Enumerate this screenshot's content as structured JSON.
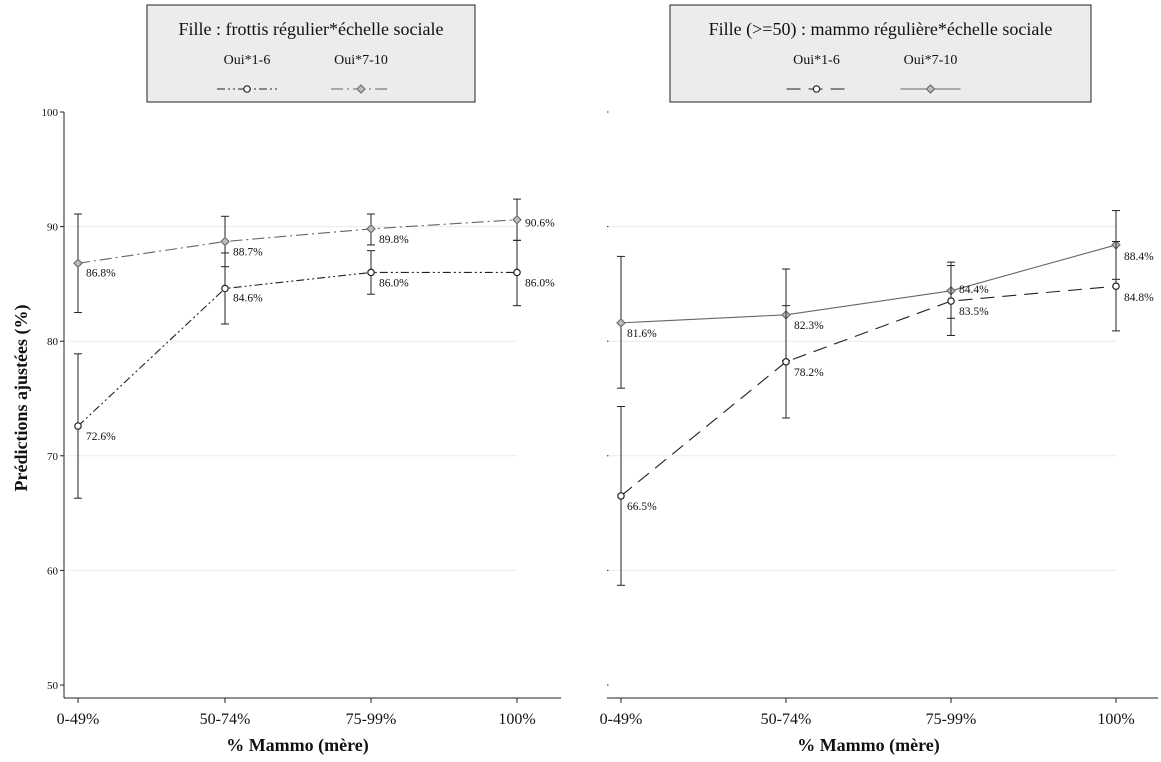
{
  "y_axis_title": "Prédictions ajustées (%)",
  "chart_data": [
    {
      "type": "line",
      "title": "Fille : frottis régulier*échelle sociale",
      "xlabel": "% Mammo (mère)",
      "ylabel": "Prédictions ajustées (%)",
      "categories": [
        "0-49%",
        "50-74%",
        "75-99%",
        "100%"
      ],
      "ylim": [
        50,
        100
      ],
      "yticks": [
        50,
        60,
        70,
        80,
        90,
        100
      ],
      "grid": true,
      "legend_position": "top",
      "series": [
        {
          "name": "Oui*1-6",
          "marker": "circle",
          "line_style": "dash-dot-dot",
          "color": "#222222",
          "values": [
            72.6,
            84.6,
            86.0,
            86.0
          ],
          "ci_low": [
            66.3,
            81.5,
            84.1,
            83.1
          ],
          "ci_high": [
            78.9,
            87.7,
            87.9,
            88.8
          ],
          "labels": [
            "72.6%",
            "84.6%",
            "86.0%",
            "86.0%"
          ]
        },
        {
          "name": "Oui*7-10",
          "marker": "diamond",
          "line_style": "long-dash-dot",
          "color": "#666666",
          "values": [
            86.8,
            88.7,
            89.8,
            90.6
          ],
          "ci_low": [
            82.5,
            86.5,
            88.4,
            88.8
          ],
          "ci_high": [
            91.1,
            90.9,
            91.1,
            92.4
          ],
          "labels": [
            "86.8%",
            "88.7%",
            "89.8%",
            "90.6%"
          ]
        }
      ]
    },
    {
      "type": "line",
      "title": "Fille (>=50) : mammo régulière*échelle sociale",
      "xlabel": "% Mammo (mère)",
      "ylabel": "",
      "categories": [
        "0-49%",
        "50-74%",
        "75-99%",
        "100%"
      ],
      "ylim": [
        50,
        100
      ],
      "yticks": [
        50,
        60,
        70,
        80,
        90,
        100
      ],
      "grid": true,
      "legend_position": "top",
      "series": [
        {
          "name": "Oui*1-6",
          "marker": "circle",
          "line_style": "dash",
          "color": "#222222",
          "values": [
            66.5,
            78.2,
            83.5,
            84.8
          ],
          "ci_low": [
            58.7,
            73.3,
            80.5,
            80.9
          ],
          "ci_high": [
            74.3,
            83.1,
            86.6,
            88.7
          ],
          "labels": [
            "66.5%",
            "78.2%",
            "83.5%",
            "84.8%"
          ]
        },
        {
          "name": "Oui*7-10",
          "marker": "diamond",
          "line_style": "solid",
          "color": "#666666",
          "values": [
            81.6,
            82.3,
            84.4,
            88.4
          ],
          "ci_low": [
            75.9,
            78.3,
            82.0,
            85.4
          ],
          "ci_high": [
            87.4,
            86.3,
            86.9,
            91.4
          ],
          "labels": [
            "81.6%",
            "82.3%",
            "84.4%",
            "88.4%"
          ]
        }
      ]
    }
  ]
}
